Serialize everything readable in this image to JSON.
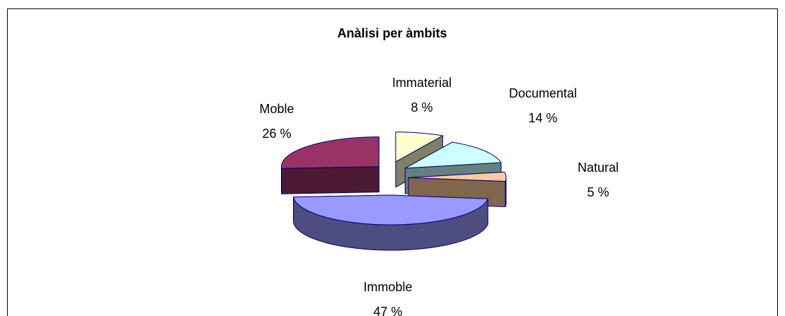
{
  "chart_data": {
    "type": "pie3d",
    "title": "Anàlisi per àmbits",
    "categories": [
      "Immaterial",
      "Documental",
      "Natural",
      "Immoble",
      "Moble"
    ],
    "values": [
      8,
      14,
      5,
      47,
      26
    ],
    "value_labels": [
      "8 %",
      "14 %",
      "5 %",
      "47 %",
      "26 %"
    ],
    "colors": [
      "#ffffcc",
      "#ccffff",
      "#ffcc99",
      "#9999ff",
      "#993366"
    ]
  }
}
